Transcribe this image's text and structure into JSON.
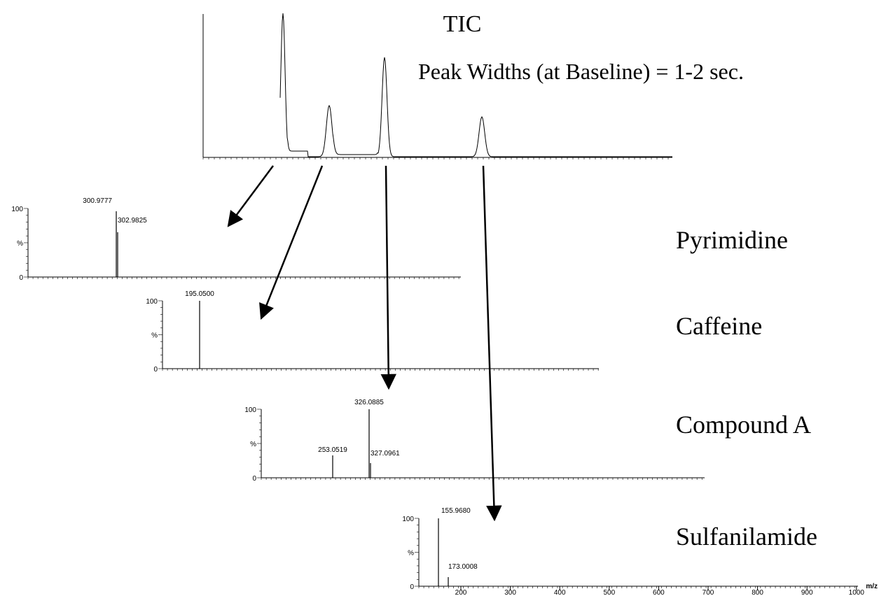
{
  "header": {
    "title": "TIC",
    "subtitle": "Peak Widths (at Baseline) = 1-2 sec."
  },
  "spectra": [
    {
      "name": "Pyrimidine",
      "y_labels": [
        "100",
        "%",
        "0"
      ],
      "peak_labels": [
        "300.9777",
        "302.9825"
      ]
    },
    {
      "name": "Caffeine",
      "y_labels": [
        "100",
        "%",
        "0"
      ],
      "peak_labels": [
        "195.0500"
      ]
    },
    {
      "name": "Compound A",
      "y_labels": [
        "100",
        "%",
        "0"
      ],
      "peak_labels": [
        "253.0519",
        "326.0885",
        "327.0961"
      ]
    },
    {
      "name": "Sulfanilamide",
      "y_labels": [
        "100",
        "%",
        "0"
      ],
      "peak_labels": [
        "155.9680",
        "173.0008"
      ]
    }
  ],
  "x_axis": {
    "ticks": [
      "200",
      "300",
      "400",
      "500",
      "600",
      "700",
      "800",
      "900",
      "1000"
    ],
    "label": "m/z"
  }
}
